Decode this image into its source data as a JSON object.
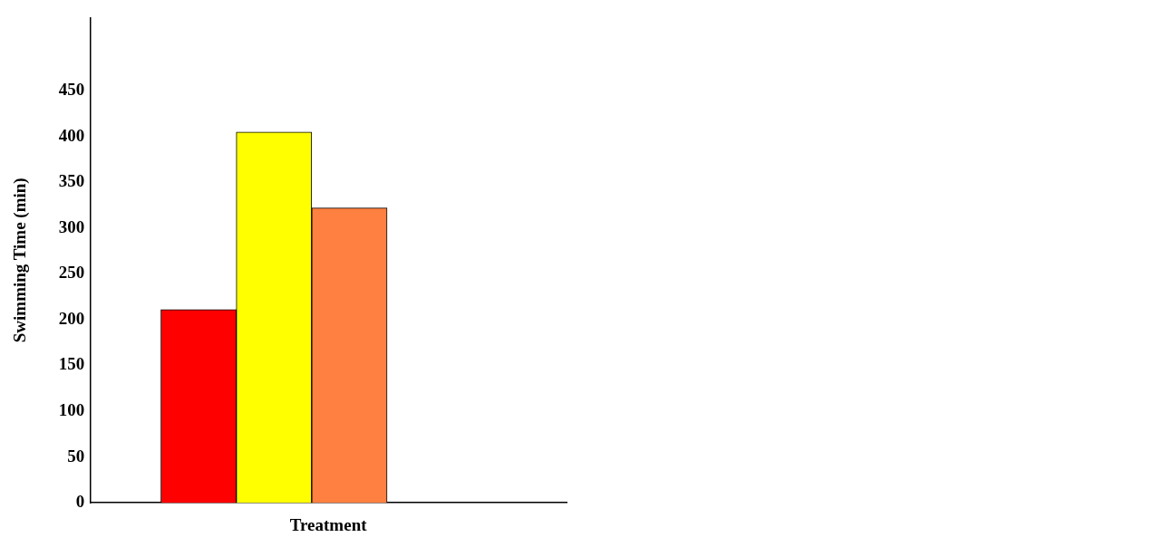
{
  "chart_data": {
    "type": "bar",
    "xlabel": "Treatment",
    "ylabel": "Swimming Time (min)",
    "categories": [
      null,
      null,
      null
    ],
    "values": [
      211,
      405,
      322
    ],
    "colors": [
      "#ff0000",
      "#ffff00",
      "#ff8040"
    ],
    "ylim": [
      0,
      530
    ],
    "yticks": [
      0,
      50,
      100,
      150,
      200,
      250,
      300,
      350,
      400,
      450
    ],
    "grid": false,
    "legend": false
  }
}
